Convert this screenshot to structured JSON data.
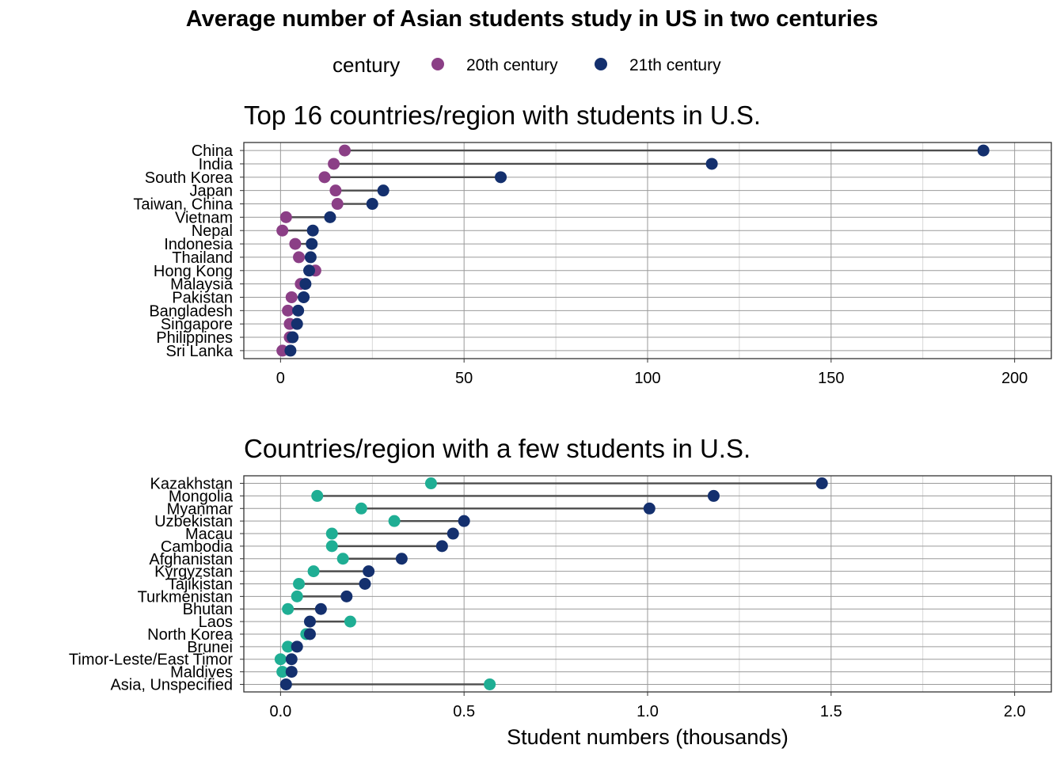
{
  "figure": {
    "title": "Average number of Asian students study in US in two centuries",
    "legend": {
      "title": "century",
      "items": [
        {
          "label": "20th century",
          "color": "#8B3F86"
        },
        {
          "label": "21th century",
          "color": "#14306E"
        }
      ]
    },
    "x_axis_label": "Student numbers (thousands)"
  },
  "chart_data": [
    {
      "type": "dumbbell",
      "title": "Top 16 countries/region with students in U.S.",
      "xlabel": "",
      "xlim": [
        -10,
        210
      ],
      "xticks": [
        0,
        50,
        100,
        150,
        200
      ],
      "xtick_labels": [
        "0",
        "50",
        "100",
        "150",
        "200"
      ],
      "grid": true,
      "point_color_20th": "#8B3F86",
      "point_color_21st": "#14306E",
      "categories": [
        "China",
        "India",
        "South Korea",
        "Japan",
        "Taiwan, China",
        "Vietnam",
        "Nepal",
        "Indonesia",
        "Thailand",
        "Hong Kong",
        "Malaysia",
        "Pakistan",
        "Bangladesh",
        "Singapore",
        "Philippines",
        "Sri Lanka"
      ],
      "series": [
        {
          "name": "20th century",
          "values": [
            17.5,
            14.5,
            12,
            15,
            15.5,
            1.5,
            0.5,
            4,
            5,
            9.5,
            5.5,
            3,
            2,
            2.5,
            2.5,
            0.5
          ]
        },
        {
          "name": "21th century",
          "values": [
            191.5,
            117.5,
            60,
            28,
            25,
            13.5,
            8.8,
            8.5,
            8.2,
            7.8,
            6.8,
            6.3,
            4.8,
            4.5,
            3.3,
            2.7
          ]
        }
      ]
    },
    {
      "type": "dumbbell",
      "title": "Countries/region with a few students in U.S.",
      "xlabel": "Student numbers (thousands)",
      "xlim": [
        -0.1,
        2.1
      ],
      "xticks": [
        0,
        0.5,
        1.0,
        1.5,
        2.0
      ],
      "xtick_labels": [
        "0.0",
        "0.5",
        "1.0",
        "1.5",
        "2.0"
      ],
      "grid": true,
      "point_color_20th": "#1FAE94",
      "point_color_21st": "#14306E",
      "categories": [
        "Kazakhstan",
        "Mongolia",
        "Myanmar",
        "Uzbekistan",
        "Macau",
        "Cambodia",
        "Afghanistan",
        "Kyrgyzstan",
        "Tajikistan",
        "Turkmenistan",
        "Bhutan",
        "Laos",
        "North Korea",
        "Brunei",
        "Timor-Leste/East Timor",
        "Maldives",
        "Asia, Unspecified"
      ],
      "series": [
        {
          "name": "20th century",
          "values": [
            0.41,
            0.1,
            0.22,
            0.31,
            0.14,
            0.14,
            0.17,
            0.09,
            0.05,
            0.045,
            0.02,
            0.19,
            0.07,
            0.02,
            0.0,
            0.005,
            0.57
          ]
        },
        {
          "name": "21th century",
          "values": [
            1.475,
            1.18,
            1.005,
            0.5,
            0.47,
            0.44,
            0.33,
            0.24,
            0.23,
            0.18,
            0.11,
            0.08,
            0.08,
            0.045,
            0.03,
            0.03,
            0.015
          ]
        }
      ]
    }
  ]
}
